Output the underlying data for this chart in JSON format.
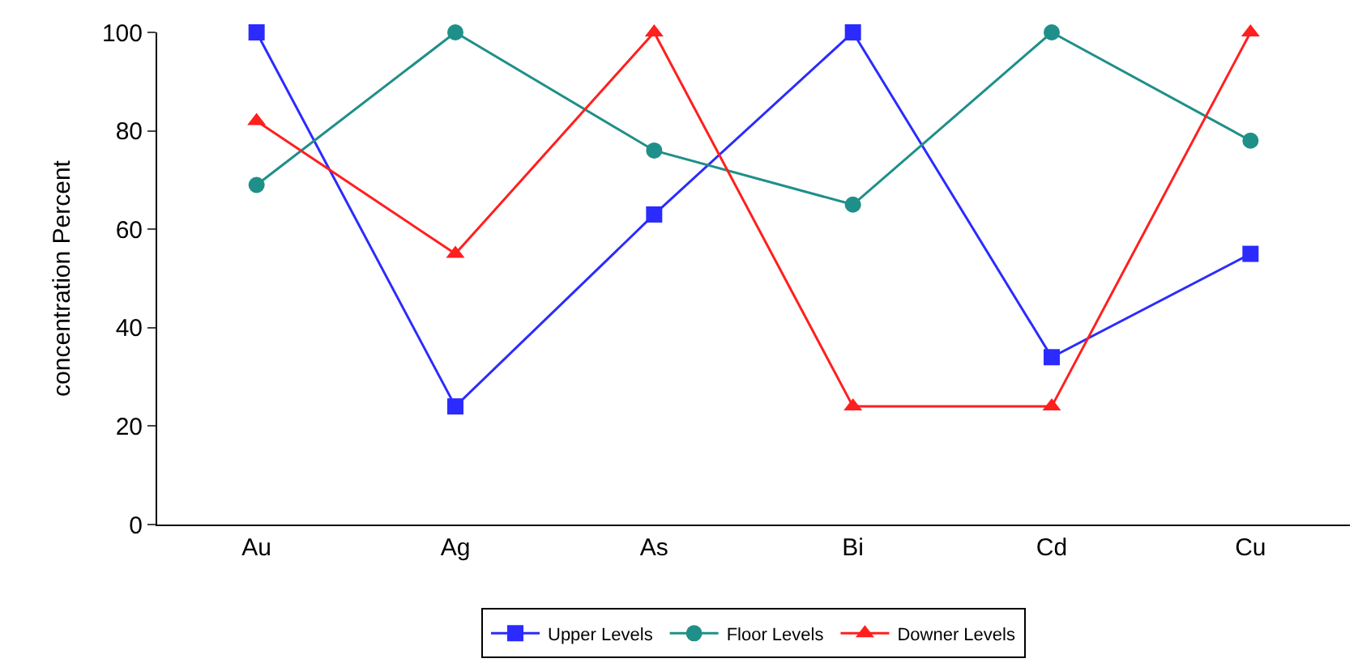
{
  "chart_data": {
    "type": "line",
    "ylabel": "concentration Percent",
    "categories": [
      "Au",
      "Ag",
      "As",
      "Bi",
      "Cd",
      "Cu"
    ],
    "ylim": [
      0,
      100
    ],
    "yticks": [
      0,
      20,
      40,
      60,
      80,
      100
    ],
    "legend": "bottom",
    "series": [
      {
        "name": "Upper Levels",
        "color": "#2b2bff",
        "marker": "square",
        "values": [
          100,
          24,
          63,
          100,
          34,
          55
        ]
      },
      {
        "name": "Floor Levels",
        "color": "#1f8f8a",
        "marker": "circle",
        "values": [
          69,
          100,
          76,
          65,
          100,
          78
        ]
      },
      {
        "name": "Downer Levels",
        "color": "#ff1f1f",
        "marker": "triangle",
        "values": [
          82,
          55,
          100,
          24,
          24,
          100
        ]
      }
    ]
  }
}
